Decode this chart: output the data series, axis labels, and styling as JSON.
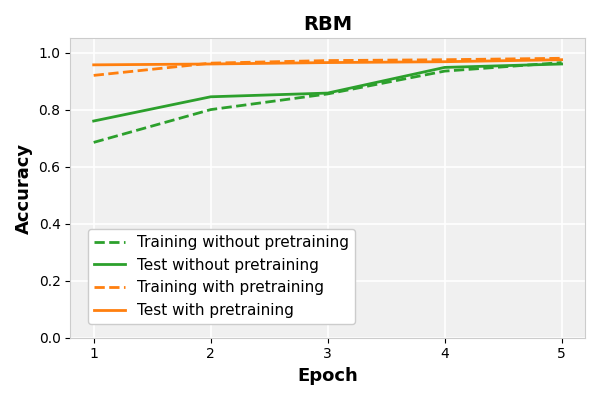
{
  "title": "RBM",
  "xlabel": "Epoch",
  "ylabel": "Accuracy",
  "epochs": [
    1,
    2,
    3,
    4,
    5
  ],
  "train_without_pretrain": [
    0.685,
    0.8,
    0.855,
    0.935,
    0.965
  ],
  "test_without_pretrain": [
    0.76,
    0.845,
    0.858,
    0.948,
    0.96
  ],
  "train_with_pretrain": [
    0.92,
    0.963,
    0.972,
    0.975,
    0.98
  ],
  "test_with_pretrain": [
    0.957,
    0.96,
    0.965,
    0.968,
    0.975
  ],
  "color_green": "#2ca02c",
  "color_orange": "#ff7f0e",
  "ylim": [
    0.0,
    1.05
  ],
  "xlim": [
    0.8,
    5.2
  ],
  "yticks": [
    0.0,
    0.2,
    0.4,
    0.6,
    0.8,
    1.0
  ],
  "xticks": [
    1,
    2,
    3,
    4,
    5
  ],
  "title_fontsize": 14,
  "label_fontsize": 13,
  "legend_fontsize": 11,
  "linewidth": 2.0,
  "bg_color": "#f0f0f0",
  "grid_color": "#ffffff",
  "legend_labels": [
    "Training without pretraining",
    "Test without pretraining",
    "Training with pretraining",
    "Test with pretraining"
  ]
}
